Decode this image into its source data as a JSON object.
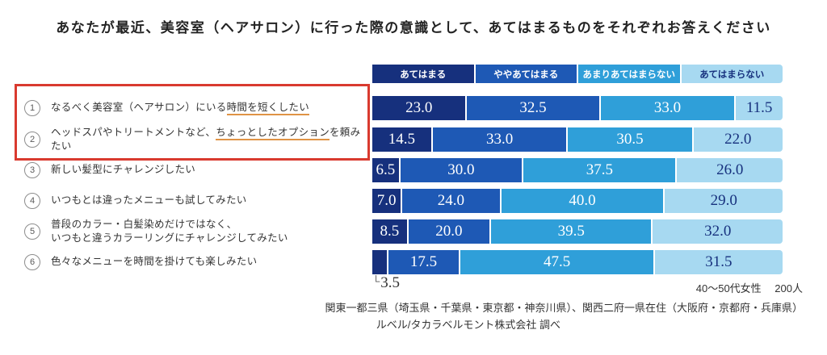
{
  "title": "あなたが最近、美容室（ヘアサロン）に行った際の意識として、あてはまるものをそれぞれお答えください",
  "legend": [
    "あてはまる",
    "ややあてはまる",
    "あまりあてはまらない",
    "あてはまらない"
  ],
  "questions": [
    {
      "num": "1",
      "parts": [
        {
          "t": "なるべく美容室（ヘアサロン）にいる"
        },
        {
          "t": "時間を短くしたい",
          "u": true
        }
      ]
    },
    {
      "num": "2",
      "parts": [
        {
          "t": "ヘッドスパやトリートメントなど、"
        },
        {
          "t": "ちょっとしたオプション",
          "u": true
        },
        {
          "t": "を頼みたい"
        }
      ]
    },
    {
      "num": "3",
      "parts": [
        {
          "t": "新しい髪型にチャレンジしたい"
        }
      ]
    },
    {
      "num": "4",
      "parts": [
        {
          "t": "いつもとは違ったメニューも試してみたい"
        }
      ]
    },
    {
      "num": "5",
      "parts": [
        {
          "t": "普段のカラー・白髪染めだけではなく、"
        },
        {
          "br": true
        },
        {
          "t": "いつもと違うカラーリングにチャレンジしてみたい"
        }
      ]
    },
    {
      "num": "6",
      "parts": [
        {
          "t": "色々なメニューを時間を掛けても楽しみたい"
        }
      ]
    }
  ],
  "chart_data": {
    "type": "bar",
    "stacked": true,
    "orientation": "horizontal",
    "value_unit": "%",
    "xlim": [
      0,
      100
    ],
    "grid": false,
    "legend_position": "top",
    "categories": [
      "なるべく美容室（ヘアサロン）にいる時間を短くしたい",
      "ヘッドスパやトリートメントなど、ちょっとしたオプションを頼みたい",
      "新しい髪型にチャレンジしたい",
      "いつもとは違ったメニューも試してみたい",
      "普段のカラー・白髪染めだけではなく、いつもと違うカラーリングにチャレンジしてみたい",
      "色々なメニューを時間を掛けても楽しみたい"
    ],
    "series": [
      {
        "name": "あてはまる",
        "color": "#16307d",
        "values": [
          23.0,
          14.5,
          6.5,
          7.0,
          8.5,
          3.5
        ]
      },
      {
        "name": "ややあてはまる",
        "color": "#1e59b5",
        "values": [
          32.5,
          33.0,
          30.0,
          24.0,
          20.0,
          17.5
        ]
      },
      {
        "name": "あまりあてはまらない",
        "color": "#2f9fd9",
        "values": [
          33.0,
          30.5,
          37.5,
          40.0,
          39.5,
          47.5
        ]
      },
      {
        "name": "あてはまらない",
        "color": "#a7d9f1",
        "values": [
          11.5,
          22.0,
          26.0,
          29.0,
          32.0,
          31.5
        ]
      }
    ],
    "annotations": [
      {
        "category_index": 5,
        "series": "あてはまる",
        "value": 3.5,
        "note": "value shown as callout below bar"
      }
    ]
  },
  "annotation": {
    "bracket": "└",
    "value": "3.5"
  },
  "footer": {
    "sample": "40～50代女性　 200人",
    "regions": "関東一都三県（埼玉県・千葉県・東京都・神奈川県）、関西二府一県在住（大阪府・京都府・兵庫県）",
    "source": "ルベル/タカラベルモント株式会社 調べ"
  },
  "colors": {
    "agree": "#16307d",
    "somewhat_agree": "#1e59b5",
    "somewhat_disagree": "#2f9fd9",
    "disagree": "#a7d9f1",
    "value_text_dark": "#17317e",
    "highlight_box": "#d93a2f",
    "underline_orange": "#df9345"
  }
}
